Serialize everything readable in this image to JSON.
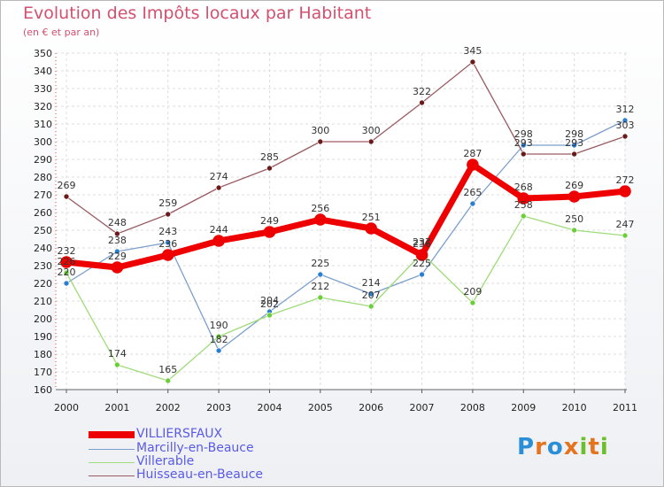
{
  "title": "Evolution des Impôts locaux par Habitant",
  "subtitle": "(en € et par an)",
  "brand": {
    "text": "Proxiti",
    "letters": [
      "P",
      "r",
      "o",
      "x",
      "i",
      "t",
      "i"
    ],
    "colors": [
      "#2a8fd6",
      "#e5741f",
      "#2a8fd6",
      "#e5741f",
      "#6cbf2a",
      "#e5741f",
      "#6cbf2a"
    ]
  },
  "chart_data": {
    "type": "line",
    "title": "Evolution des Impôts locaux par Habitant",
    "subtitle": "(en € et par an)",
    "xlabel": "",
    "ylabel": "",
    "categories": [
      "2000",
      "2001",
      "2002",
      "2003",
      "2004",
      "2005",
      "2006",
      "2007",
      "2008",
      "2009",
      "2010",
      "2011"
    ],
    "ylim": [
      160,
      350
    ],
    "yticks": [
      160,
      170,
      180,
      190,
      200,
      210,
      220,
      230,
      240,
      250,
      260,
      270,
      280,
      290,
      300,
      310,
      320,
      330,
      340,
      350
    ],
    "grid": true,
    "legend_position": "bottom-left",
    "series": [
      {
        "name": "Marcilly-en-Beauce",
        "color": "#7b9fcc",
        "marker": "#2a7fd0",
        "width": 1.3,
        "values": [
          220,
          238,
          243,
          182,
          204,
          225,
          214,
          225,
          265,
          298,
          298,
          312
        ],
        "labels": [
          "220",
          "238",
          "243",
          "182",
          "204",
          "225",
          "214",
          "225",
          "265",
          "298",
          "298",
          "312"
        ]
      },
      {
        "name": "Villerable",
        "color": "#9fdc7a",
        "marker": "#6ccf3a",
        "width": 1.3,
        "values": [
          226,
          174,
          165,
          190,
          202,
          212,
          207,
          237,
          209,
          258,
          250,
          247
        ],
        "labels": [
          "226",
          "174",
          "165",
          "190",
          "202",
          "212",
          "207",
          "237",
          "209",
          "258",
          "250",
          "247"
        ]
      },
      {
        "name": "Huisseau-en-Beauce",
        "color": "#9a5b63",
        "marker": "#6b1a1a",
        "width": 1.3,
        "values": [
          269,
          248,
          259,
          274,
          285,
          300,
          300,
          322,
          345,
          293,
          293,
          303
        ],
        "labels": [
          "269",
          "248",
          "259",
          "274",
          "285",
          "300",
          "300",
          "322",
          "345",
          "293",
          "293",
          "303"
        ]
      },
      {
        "name": "VILLIERSFAUX",
        "color": "#ee0000",
        "marker": "#ee0000",
        "width": 7,
        "values": [
          232,
          229,
          236,
          244,
          249,
          256,
          251,
          236,
          287,
          268,
          269,
          272
        ],
        "labels": [
          "232",
          "229",
          "236",
          "244",
          "249",
          "256",
          "251",
          "236",
          "287",
          "268",
          "269",
          "272"
        ]
      }
    ],
    "legend": [
      "VILLIERSFAUX",
      "Marcilly-en-Beauce",
      "Villerable",
      "Huisseau-en-Beauce"
    ]
  }
}
